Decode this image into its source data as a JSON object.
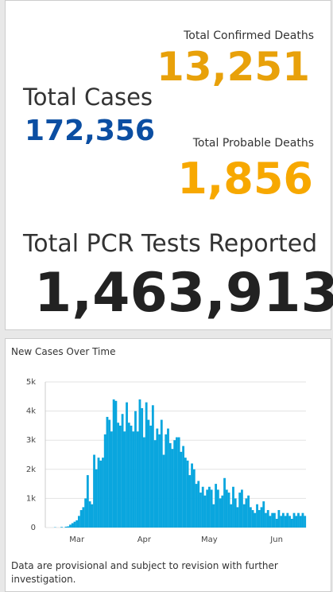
{
  "stats": {
    "confirmed_deaths": {
      "label": "Total Confirmed Deaths",
      "value": "13,251"
    },
    "total_cases": {
      "label": "Total Cases",
      "value": "172,356"
    },
    "probable_deaths": {
      "label": "Total Probable Deaths",
      "value": "1,856"
    },
    "pcr_tests": {
      "label": "Total PCR Tests Reported",
      "value": "1,463,913"
    }
  },
  "chart_data": {
    "type": "bar",
    "title": "New Cases Over Time",
    "color": "#0aa6de",
    "grid": true,
    "categories": [
      null,
      null,
      null,
      null,
      null,
      null,
      null,
      null,
      null,
      null,
      null,
      null,
      null,
      null,
      "Mar",
      null,
      null,
      null,
      null,
      null,
      null,
      null,
      null,
      null,
      null,
      null,
      null,
      null,
      null,
      null,
      null,
      null,
      null,
      null,
      null,
      null,
      null,
      null,
      null,
      null,
      null,
      null,
      null,
      null,
      null,
      "Apr",
      null,
      null,
      null,
      null,
      null,
      null,
      null,
      null,
      null,
      null,
      null,
      null,
      null,
      null,
      null,
      null,
      null,
      null,
      null,
      null,
      null,
      null,
      null,
      null,
      null,
      null,
      null,
      null,
      null,
      "May",
      null,
      null,
      null,
      null,
      null,
      null,
      null,
      null,
      null,
      null,
      null,
      null,
      null,
      null,
      null,
      null,
      null,
      null,
      null,
      null,
      null,
      null,
      null,
      null,
      null,
      null,
      null,
      null,
      null,
      null,
      "Jun",
      null,
      null,
      null,
      null,
      null,
      null,
      null,
      null,
      null,
      null,
      null,
      null,
      null
    ],
    "values": [
      0,
      0,
      0,
      0,
      10,
      0,
      0,
      20,
      0,
      30,
      40,
      100,
      150,
      200,
      250,
      400,
      600,
      700,
      1000,
      1800,
      900,
      800,
      2500,
      2000,
      2400,
      2300,
      2400,
      3200,
      3800,
      3700,
      3300,
      4400,
      4350,
      3600,
      3500,
      3900,
      3300,
      4300,
      3600,
      3500,
      3300,
      4000,
      3300,
      4400,
      4100,
      3100,
      4300,
      3700,
      3500,
      4200,
      3000,
      3400,
      3200,
      3700,
      2500,
      3200,
      3400,
      2900,
      2700,
      3000,
      3100,
      3100,
      2600,
      2800,
      2400,
      2300,
      1800,
      2200,
      2000,
      1500,
      1600,
      1200,
      1400,
      1100,
      1300,
      1400,
      1300,
      800,
      1500,
      1300,
      1000,
      1100,
      1700,
      1300,
      1200,
      800,
      1400,
      1000,
      700,
      1200,
      1300,
      800,
      1000,
      1100,
      700,
      600,
      500,
      800,
      600,
      700,
      900,
      500,
      600,
      400,
      500,
      500,
      300,
      600,
      400,
      500,
      400,
      500,
      400,
      300,
      500,
      400,
      500,
      400,
      500,
      400
    ],
    "ylim": [
      0,
      5000
    ],
    "yticks": [
      0,
      {
        "value": 1000,
        "label": "1k"
      },
      {
        "value": 2000,
        "label": "2k"
      },
      {
        "value": 3000,
        "label": "3k"
      },
      {
        "value": 4000,
        "label": "4k"
      },
      {
        "value": 5000,
        "label": "5k"
      }
    ]
  },
  "footnote": "Data are provisional and subject to revision with further investigation."
}
